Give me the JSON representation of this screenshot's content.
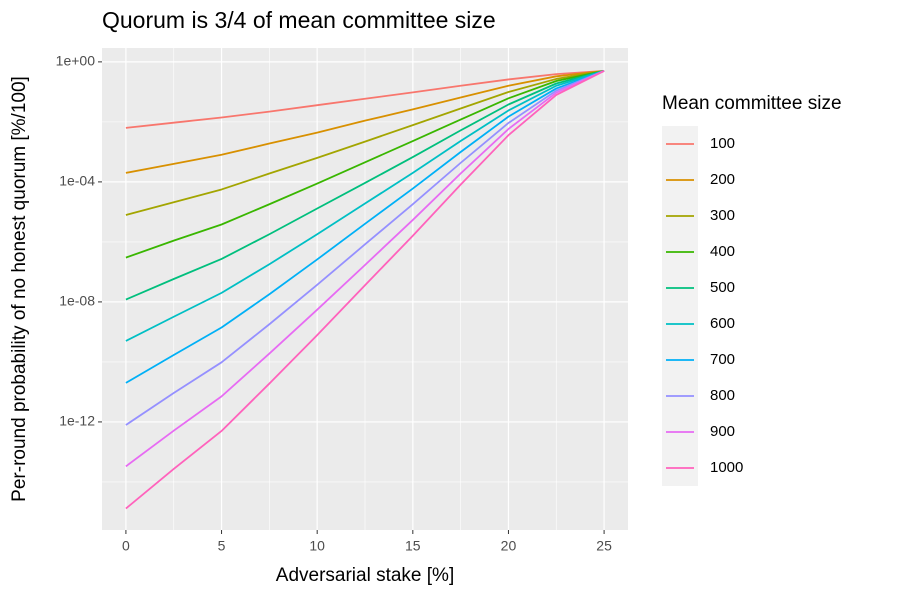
{
  "chart_data": {
    "type": "line",
    "title": "Quorum is 3/4 of mean committee size",
    "x_label": "Adversarial stake [%]",
    "y_label": "Per-round probability of no honest quorum [%/100]",
    "legend_title": "Mean committee size",
    "legend_position": "right",
    "log_y": true,
    "grid": true,
    "x": [
      0,
      2.5,
      5,
      7.5,
      10,
      12.5,
      15,
      17.5,
      20,
      22.5,
      25
    ],
    "xlim": [
      -1.25,
      26.25
    ],
    "xticks": [
      0,
      5,
      10,
      15,
      20,
      25
    ],
    "ylim": [
      2.5e-16,
      2.9
    ],
    "yticks": [
      {
        "value": 1e-12,
        "label": "1e-12"
      },
      {
        "value": 1e-08,
        "label": "1e-08"
      },
      {
        "value": 0.0001,
        "label": "1e-04"
      },
      {
        "value": 1,
        "label": "1e+00"
      }
    ],
    "series": [
      {
        "name": "100",
        "color": "#F8766D",
        "values": [
          0.0063,
          0.0094,
          0.014,
          0.022,
          0.036,
          0.059,
          0.096,
          0.16,
          0.26,
          0.39,
          0.5
        ]
      },
      {
        "name": "200",
        "color": "#D89000",
        "values": [
          0.0002,
          0.0004,
          0.0008,
          0.0019,
          0.0044,
          0.011,
          0.026,
          0.065,
          0.16,
          0.33,
          0.5
        ]
      },
      {
        "name": "300",
        "color": "#A3A500",
        "values": [
          7.9e-06,
          2.1e-05,
          5.6e-05,
          0.00019,
          0.00063,
          0.0022,
          0.0078,
          0.028,
          0.099,
          0.27,
          0.5
        ]
      },
      {
        "name": "400",
        "color": "#39B600",
        "values": [
          3e-07,
          1.1e-06,
          3.8e-06,
          1.8e-05,
          8.8e-05,
          0.00045,
          0.0023,
          0.012,
          0.061,
          0.23,
          0.5
        ]
      },
      {
        "name": "500",
        "color": "#00BF7D",
        "values": [
          1.2e-08,
          5.8e-08,
          2.7e-07,
          1.8e-06,
          1.3e-05,
          9.2e-05,
          0.00067,
          0.0052,
          0.038,
          0.19,
          0.5
        ]
      },
      {
        "name": "600",
        "color": "#00BFC4",
        "values": [
          5e-10,
          3.2e-09,
          2e-08,
          1.8e-07,
          1.8e-06,
          1.9e-05,
          0.0002,
          0.0023,
          0.024,
          0.16,
          0.5
        ]
      },
      {
        "name": "700",
        "color": "#00B0F6",
        "values": [
          2e-11,
          1.7e-10,
          1.4e-09,
          1.8e-08,
          2.6e-07,
          4e-06,
          6e-05,
          0.00099,
          0.015,
          0.13,
          0.5
        ]
      },
      {
        "name": "800",
        "color": "#9590FF",
        "values": [
          7.9e-13,
          9.2e-12,
          9.7e-11,
          1.8e-09,
          3.7e-08,
          8.3e-07,
          1.8e-05,
          0.00043,
          0.0092,
          0.11,
          0.5
        ]
      },
      {
        "name": "900",
        "color": "#E76BF3",
        "values": [
          3.3e-14,
          5.1e-13,
          7.1e-12,
          1.9e-10,
          5.5e-09,
          1.7e-07,
          5.4e-06,
          0.00019,
          0.0058,
          0.094,
          0.5
        ]
      },
      {
        "name": "1000",
        "color": "#FF62BC",
        "values": [
          1.3e-15,
          2.7e-14,
          5e-13,
          1.9e-11,
          7.8e-10,
          3.6e-08,
          1.6e-06,
          8.1e-05,
          0.0036,
          0.079,
          0.5
        ]
      }
    ]
  }
}
